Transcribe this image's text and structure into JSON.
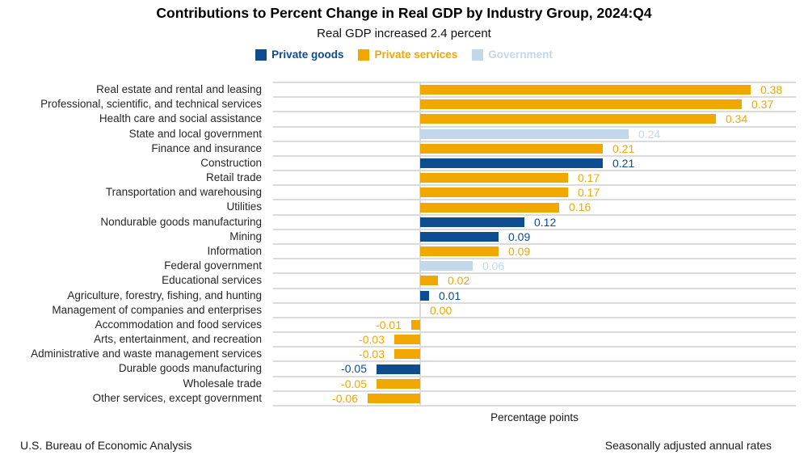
{
  "title": "Contributions to Percent Change in Real GDP by Industry Group, 2024:Q4",
  "subtitle": "Real GDP increased 2.4 percent",
  "legend": [
    {
      "label": "Private goods",
      "group": "goods"
    },
    {
      "label": "Private services",
      "group": "services"
    },
    {
      "label": "Government",
      "group": "government"
    }
  ],
  "colors": {
    "goods": "#0C4C8F",
    "services": "#F0A800",
    "government": "#C3D7EB",
    "gridline": "#DBDBDB"
  },
  "footer": {
    "left": "U.S. Bureau of Economic Analysis",
    "right": "Seasonally adjusted annual rates"
  },
  "chart_data": {
    "type": "bar",
    "orientation": "horizontal",
    "title": "Contributions to Percent Change in Real GDP by Industry Group, 2024:Q4",
    "subtitle": "Real GDP increased 2.4 percent",
    "xlabel": "Percentage points",
    "xlim": [
      -0.17,
      0.43
    ],
    "grid": true,
    "legend_position": "top",
    "categories": [
      "Real estate and rental and leasing",
      "Professional, scientific, and technical services",
      "Health care and social assistance",
      "State and local government",
      "Finance and insurance",
      "Construction",
      "Retail trade",
      "Transportation and warehousing",
      "Utilities",
      "Nondurable goods manufacturing",
      "Mining",
      "Information",
      "Federal government",
      "Educational services",
      "Agriculture, forestry, fishing, and hunting",
      "Management of companies and enterprises",
      "Accommodation and food services",
      "Arts, entertainment, and recreation",
      "Administrative and waste management services",
      "Durable goods manufacturing",
      "Wholesale trade",
      "Other services, except government"
    ],
    "values": [
      0.38,
      0.37,
      0.34,
      0.24,
      0.21,
      0.21,
      0.17,
      0.17,
      0.16,
      0.12,
      0.09,
      0.09,
      0.06,
      0.02,
      0.01,
      0.0,
      -0.01,
      -0.03,
      -0.03,
      -0.05,
      -0.05,
      -0.06
    ],
    "value_labels": [
      "0.38",
      "0.37",
      "0.34",
      "0.24",
      "0.21",
      "0.21",
      "0.17",
      "0.17",
      "0.16",
      "0.12",
      "0.09",
      "0.09",
      "0.06",
      "0.02",
      "0.01",
      "0.00",
      "-0.01",
      "-0.03",
      "-0.03",
      "-0.05",
      "-0.05",
      "-0.06"
    ],
    "groups": [
      "services",
      "services",
      "services",
      "government",
      "services",
      "goods",
      "services",
      "services",
      "services",
      "goods",
      "goods",
      "services",
      "government",
      "services",
      "goods",
      "services",
      "services",
      "services",
      "services",
      "goods",
      "services",
      "services"
    ]
  }
}
